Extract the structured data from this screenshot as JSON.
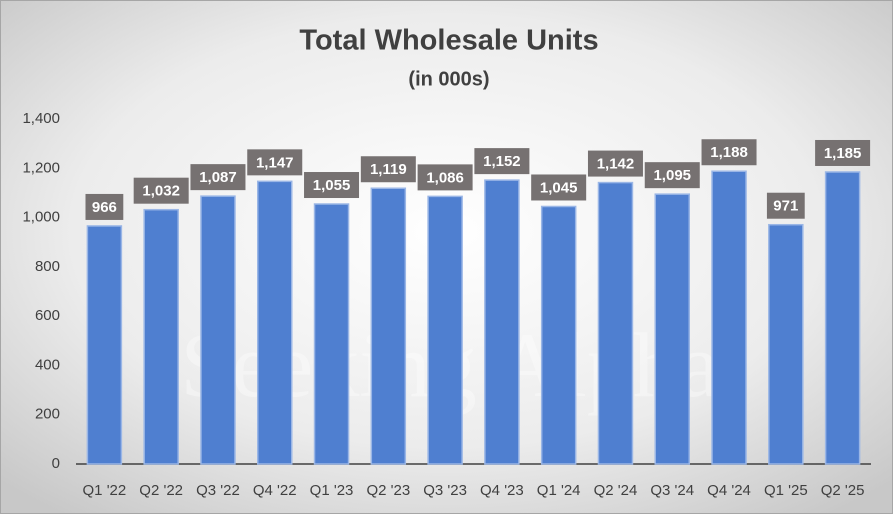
{
  "chart_data": {
    "type": "bar",
    "title": "Total Wholesale Units",
    "subtitle": "(in 000s)",
    "watermark": "Seeking Alpha",
    "categories": [
      "Q1 '22",
      "Q2 '22",
      "Q3 '22",
      "Q4 '22",
      "Q1 '23",
      "Q2 '23",
      "Q3 '23",
      "Q4 '23",
      "Q1 '24",
      "Q2 '24",
      "Q3 '24",
      "Q4 '24",
      "Q1 '25",
      "Q2 '25"
    ],
    "values": [
      966,
      1032,
      1087,
      1147,
      1055,
      1119,
      1086,
      1152,
      1045,
      1142,
      1095,
      1188,
      971,
      1185
    ],
    "value_labels": [
      "966",
      "1,032",
      "1,087",
      "1,147",
      "1,055",
      "1,119",
      "1,086",
      "1,152",
      "1,045",
      "1,142",
      "1,095",
      "1,188",
      "971",
      "1,185"
    ],
    "color": "#4f7fd0",
    "ylim": [
      0,
      1400
    ],
    "yticks": [
      0,
      200,
      400,
      600,
      800,
      {
        "value": 1000,
        "label": "1,000"
      },
      {
        "value": 1200,
        "label": "1,200"
      },
      {
        "value": 1400,
        "label": "1,400"
      }
    ],
    "grid": false
  }
}
